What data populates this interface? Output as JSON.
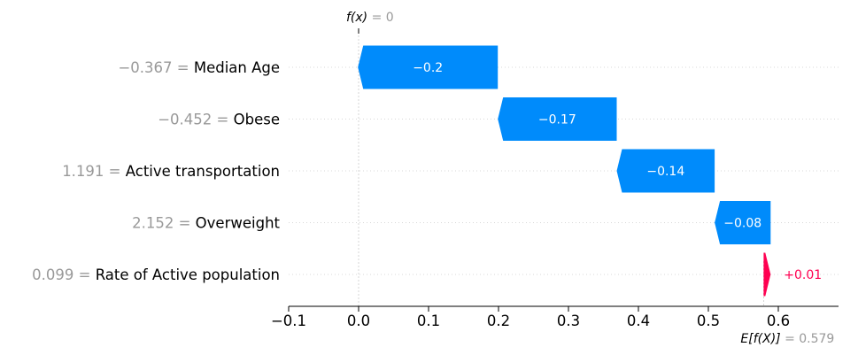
{
  "chart_data": {
    "type": "waterfall",
    "title": "",
    "xlim": [
      -0.1,
      0.69
    ],
    "xticks": [
      -0.1,
      0.0,
      0.1,
      0.2,
      0.3,
      0.4,
      0.5,
      0.6
    ],
    "xtick_labels": [
      "−0.1",
      "0.0",
      "0.1",
      "0.2",
      "0.3",
      "0.4",
      "0.5",
      "0.6"
    ],
    "base_value": 0.579,
    "base_label": {
      "name": "E[f(X)]",
      "value": "= 0.579"
    },
    "output_value": 0,
    "output_label": {
      "name": "f(x)",
      "value": "= 0"
    },
    "features": [
      {
        "value": "−0.367 =",
        "name": "Median Age",
        "contribution": -0.2,
        "label": "−0.2"
      },
      {
        "value": "−0.452 =",
        "name": "Obese",
        "contribution": -0.17,
        "label": "−0.17"
      },
      {
        "value": "1.191 =",
        "name": "Active transportation",
        "contribution": -0.14,
        "label": "−0.14"
      },
      {
        "value": "2.152 =",
        "name": "Overweight",
        "contribution": -0.08,
        "label": "−0.08"
      },
      {
        "value": "0.099 =",
        "name": "Rate of Active population",
        "contribution": 0.01,
        "label": "+0.01"
      }
    ],
    "colors": {
      "negative": "#008bfb",
      "positive": "#ff0051",
      "muted": "#999999",
      "text": "#000000",
      "grid": "#cccccc"
    }
  }
}
